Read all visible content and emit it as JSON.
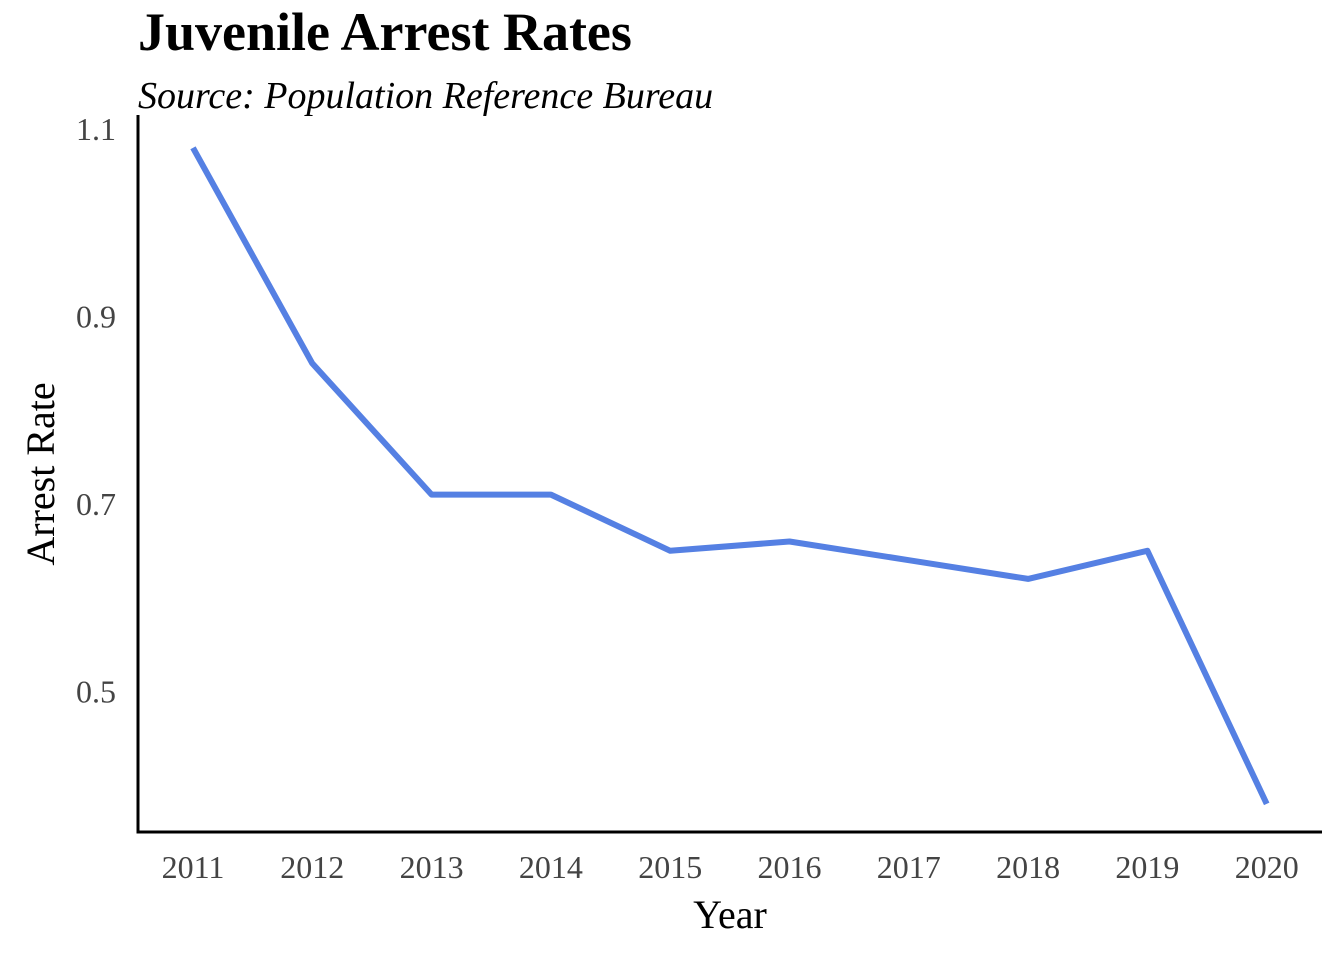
{
  "chart_data": {
    "type": "line",
    "title": "Juvenile Arrest Rates",
    "subtitle": "Source: Population Reference Bureau",
    "xlabel": "Year",
    "ylabel": "Arrest Rate",
    "x": [
      "2011",
      "2012",
      "2013",
      "2014",
      "2015",
      "2016",
      "2017",
      "2018",
      "2019",
      "2020"
    ],
    "series": [
      {
        "values": [
          1.08,
          0.85,
          0.71,
          0.71,
          0.65,
          0.66,
          0.64,
          0.62,
          0.65,
          0.38
        ],
        "color": "#5580e3"
      }
    ],
    "y_ticks": [
      "0.5",
      "0.7",
      "0.9",
      "1.1"
    ],
    "ylim": [
      0.35,
      1.115
    ],
    "grid": false,
    "legend": "none"
  }
}
